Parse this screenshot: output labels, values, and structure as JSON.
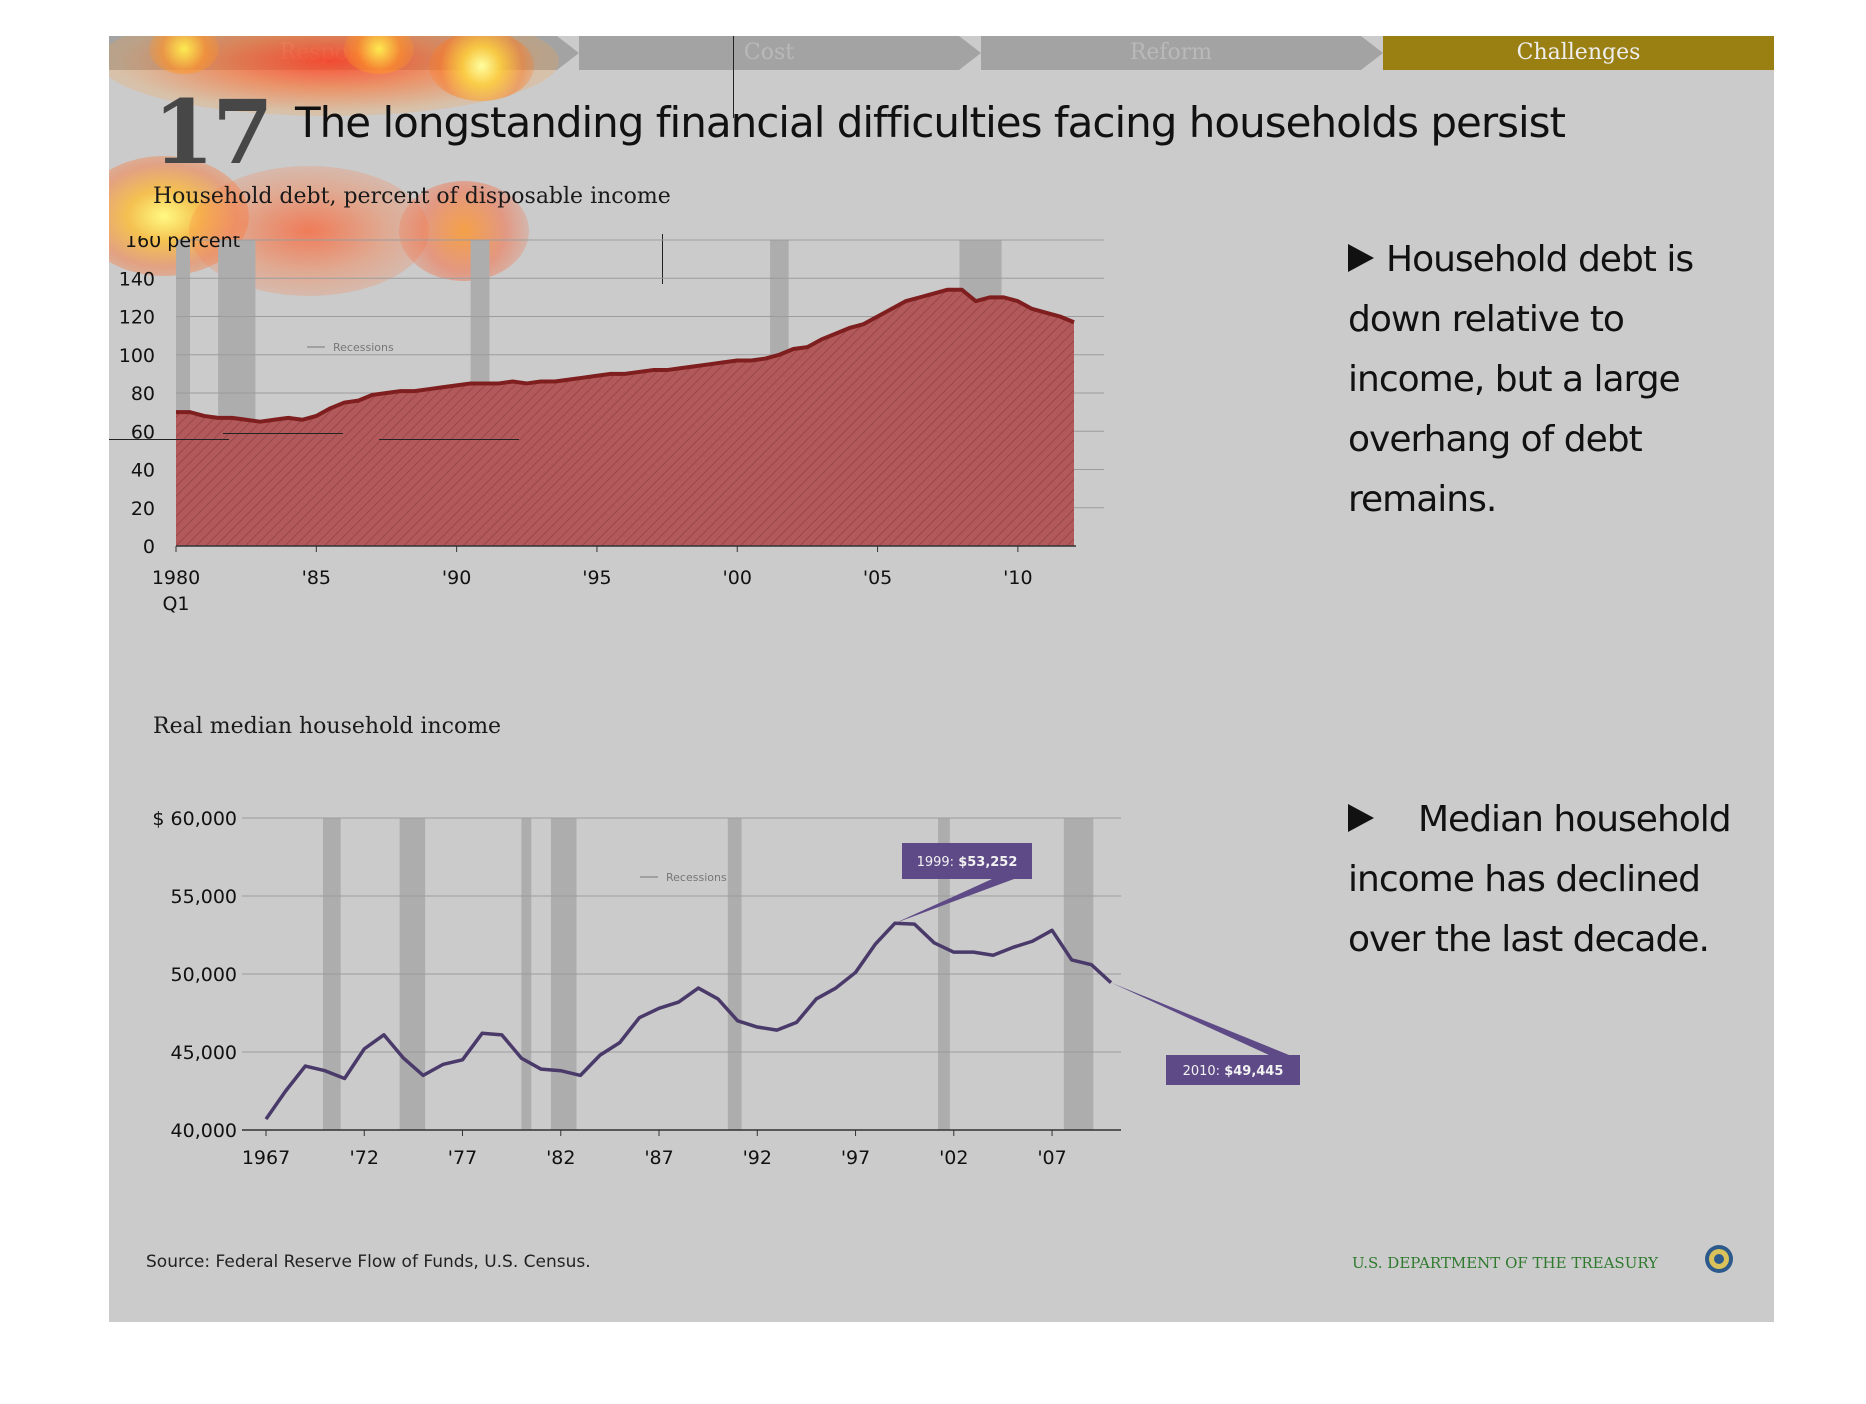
{
  "nav": {
    "tabs": [
      {
        "label": "Response",
        "active": false
      },
      {
        "label": "Cost",
        "active": false
      },
      {
        "label": "Reform",
        "active": false
      },
      {
        "label": "Challenges",
        "active": true
      }
    ]
  },
  "slide": {
    "number": "17",
    "title": "The longstanding financial difficulties facing households persist"
  },
  "notes": {
    "debt": "Household debt is down relative to income, but a large overhang of debt remains.",
    "income": "Median household income has declined over the last decade."
  },
  "footer": {
    "source": "Source: Federal Reserve Flow of Funds, U.S. Census.",
    "agency": "U.S. DEPARTMENT OF THE TREASURY"
  },
  "colors": {
    "debt_fill": "#b25a5b",
    "debt_line": "#7f1e1e",
    "income_line": "#4a3a6a",
    "callout": "#5e4a86",
    "recession": "#adadad",
    "active_tab": "#9a8012"
  },
  "chart_data": [
    {
      "type": "area",
      "title": "Household debt, percent of disposable income",
      "ylabel": "percent",
      "ylim": [
        0,
        160
      ],
      "yticks": [
        0,
        20,
        40,
        60,
        80,
        100,
        120,
        140,
        160
      ],
      "ytick_labels": [
        "0",
        "20",
        "40",
        "60",
        "80",
        "100",
        "120",
        "140",
        "160 percent"
      ],
      "xlim": [
        1980.0,
        2012.0
      ],
      "xticks": [
        1980,
        1985,
        1990,
        1995,
        2000,
        2005,
        2010
      ],
      "xtick_labels": [
        "1980",
        "'85",
        "'90",
        "'95",
        "'00",
        "'05",
        "'10"
      ],
      "xtick_sublabel": "Q1",
      "legend": "Recessions",
      "legend_position": "top-left",
      "grid": true,
      "recessions": [
        [
          1980.0,
          1980.5
        ],
        [
          1981.5,
          1982.83
        ],
        [
          1990.5,
          1991.17
        ],
        [
          2001.17,
          2001.83
        ],
        [
          2007.92,
          2009.42
        ]
      ],
      "series": [
        {
          "name": "Household debt",
          "x": [
            1980.0,
            1980.5,
            1981.0,
            1981.5,
            1982.0,
            1982.5,
            1983.0,
            1983.5,
            1984.0,
            1984.5,
            1985.0,
            1985.5,
            1986.0,
            1986.5,
            1987.0,
            1987.5,
            1988.0,
            1988.5,
            1989.0,
            1989.5,
            1990.0,
            1990.5,
            1991.0,
            1991.5,
            1992.0,
            1992.5,
            1993.0,
            1993.5,
            1994.0,
            1994.5,
            1995.0,
            1995.5,
            1996.0,
            1996.5,
            1997.0,
            1997.5,
            1998.0,
            1998.5,
            1999.0,
            1999.5,
            2000.0,
            2000.5,
            2001.0,
            2001.5,
            2002.0,
            2002.5,
            2003.0,
            2003.5,
            2004.0,
            2004.5,
            2005.0,
            2005.5,
            2006.0,
            2006.5,
            2007.0,
            2007.5,
            2008.0,
            2008.5,
            2009.0,
            2009.5,
            2010.0,
            2010.5,
            2011.0,
            2011.5,
            2012.0
          ],
          "values": [
            70,
            70,
            68,
            67,
            67,
            66,
            65,
            66,
            67,
            66,
            68,
            72,
            75,
            76,
            79,
            80,
            81,
            81,
            82,
            83,
            84,
            85,
            85,
            85,
            86,
            85,
            86,
            86,
            87,
            88,
            89,
            90,
            90,
            91,
            92,
            92,
            93,
            94,
            95,
            96,
            97,
            97,
            98,
            100,
            103,
            104,
            108,
            111,
            114,
            116,
            120,
            124,
            128,
            130,
            132,
            134,
            134,
            128,
            130,
            130,
            128,
            124,
            122,
            120,
            117
          ]
        }
      ]
    },
    {
      "type": "line",
      "title": "Real median household income",
      "ylim": [
        40000,
        60000
      ],
      "yticks": [
        40000,
        45000,
        50000,
        55000,
        60000
      ],
      "ytick_labels": [
        "40,000",
        "45,000",
        "50,000",
        "55,000",
        "$ 60,000"
      ],
      "xlim": [
        1967,
        2010
      ],
      "xticks": [
        1967,
        1972,
        1977,
        1982,
        1987,
        1992,
        1997,
        2002,
        2007
      ],
      "xtick_labels": [
        "1967",
        "'72",
        "'77",
        "'82",
        "'87",
        "'92",
        "'97",
        "'02",
        "'07"
      ],
      "legend": "Recessions",
      "legend_position": "top-center",
      "grid": true,
      "recessions": [
        [
          1969.9,
          1970.8
        ],
        [
          1973.8,
          1975.1
        ],
        [
          1980.0,
          1980.5
        ],
        [
          1981.5,
          1982.8
        ],
        [
          1990.5,
          1991.2
        ],
        [
          2001.2,
          2001.8
        ],
        [
          2007.6,
          2009.1
        ]
      ],
      "series": [
        {
          "name": "Real median household income",
          "x": [
            1967,
            1968,
            1969,
            1970,
            1971,
            1972,
            1973,
            1974,
            1975,
            1976,
            1977,
            1978,
            1979,
            1980,
            1981,
            1982,
            1983,
            1984,
            1985,
            1986,
            1987,
            1988,
            1989,
            1990,
            1991,
            1992,
            1993,
            1994,
            1995,
            1996,
            1997,
            1998,
            1999,
            2000,
            2001,
            2002,
            2003,
            2004,
            2005,
            2006,
            2007,
            2008,
            2009,
            2010
          ],
          "values": [
            40700,
            42500,
            44100,
            43800,
            43300,
            45200,
            46100,
            44600,
            43500,
            44200,
            44500,
            46200,
            46100,
            44600,
            43900,
            43800,
            43500,
            44800,
            45600,
            47200,
            47800,
            48200,
            49100,
            48400,
            47000,
            46600,
            46400,
            46900,
            48400,
            49100,
            50100,
            51900,
            53252,
            53200,
            52000,
            51400,
            51400,
            51200,
            51700,
            52100,
            52800,
            50900,
            50600,
            49445
          ]
        }
      ],
      "annotations": [
        {
          "prefix": "1999: ",
          "value": "$53,252",
          "x": 1999,
          "y": 53252
        },
        {
          "prefix": "2010: ",
          "value": "$49,445",
          "x": 2010,
          "y": 49445
        }
      ]
    }
  ]
}
